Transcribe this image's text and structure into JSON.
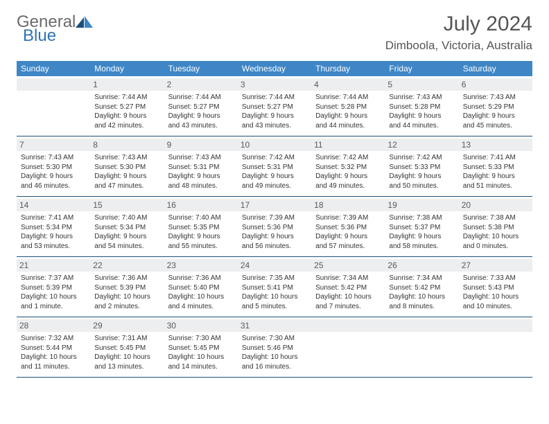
{
  "brand": {
    "part1": "General",
    "part2": "Blue"
  },
  "title": "July 2024",
  "location": "Dimboola, Victoria, Australia",
  "colors": {
    "header_bg": "#3f86c6",
    "band_bg": "#eceeef",
    "row_border": "#1b4f7a",
    "logo_gray": "#6b6b6b",
    "logo_blue": "#2f73b5"
  },
  "weekdays": [
    "Sunday",
    "Monday",
    "Tuesday",
    "Wednesday",
    "Thursday",
    "Friday",
    "Saturday"
  ],
  "weeks": [
    [
      {
        "n": "",
        "lines": []
      },
      {
        "n": "1",
        "lines": [
          "Sunrise: 7:44 AM",
          "Sunset: 5:27 PM",
          "Daylight: 9 hours",
          "and 42 minutes."
        ]
      },
      {
        "n": "2",
        "lines": [
          "Sunrise: 7:44 AM",
          "Sunset: 5:27 PM",
          "Daylight: 9 hours",
          "and 43 minutes."
        ]
      },
      {
        "n": "3",
        "lines": [
          "Sunrise: 7:44 AM",
          "Sunset: 5:27 PM",
          "Daylight: 9 hours",
          "and 43 minutes."
        ]
      },
      {
        "n": "4",
        "lines": [
          "Sunrise: 7:44 AM",
          "Sunset: 5:28 PM",
          "Daylight: 9 hours",
          "and 44 minutes."
        ]
      },
      {
        "n": "5",
        "lines": [
          "Sunrise: 7:43 AM",
          "Sunset: 5:28 PM",
          "Daylight: 9 hours",
          "and 44 minutes."
        ]
      },
      {
        "n": "6",
        "lines": [
          "Sunrise: 7:43 AM",
          "Sunset: 5:29 PM",
          "Daylight: 9 hours",
          "and 45 minutes."
        ]
      }
    ],
    [
      {
        "n": "7",
        "lines": [
          "Sunrise: 7:43 AM",
          "Sunset: 5:30 PM",
          "Daylight: 9 hours",
          "and 46 minutes."
        ]
      },
      {
        "n": "8",
        "lines": [
          "Sunrise: 7:43 AM",
          "Sunset: 5:30 PM",
          "Daylight: 9 hours",
          "and 47 minutes."
        ]
      },
      {
        "n": "9",
        "lines": [
          "Sunrise: 7:43 AM",
          "Sunset: 5:31 PM",
          "Daylight: 9 hours",
          "and 48 minutes."
        ]
      },
      {
        "n": "10",
        "lines": [
          "Sunrise: 7:42 AM",
          "Sunset: 5:31 PM",
          "Daylight: 9 hours",
          "and 49 minutes."
        ]
      },
      {
        "n": "11",
        "lines": [
          "Sunrise: 7:42 AM",
          "Sunset: 5:32 PM",
          "Daylight: 9 hours",
          "and 49 minutes."
        ]
      },
      {
        "n": "12",
        "lines": [
          "Sunrise: 7:42 AM",
          "Sunset: 5:33 PM",
          "Daylight: 9 hours",
          "and 50 minutes."
        ]
      },
      {
        "n": "13",
        "lines": [
          "Sunrise: 7:41 AM",
          "Sunset: 5:33 PM",
          "Daylight: 9 hours",
          "and 51 minutes."
        ]
      }
    ],
    [
      {
        "n": "14",
        "lines": [
          "Sunrise: 7:41 AM",
          "Sunset: 5:34 PM",
          "Daylight: 9 hours",
          "and 53 minutes."
        ]
      },
      {
        "n": "15",
        "lines": [
          "Sunrise: 7:40 AM",
          "Sunset: 5:34 PM",
          "Daylight: 9 hours",
          "and 54 minutes."
        ]
      },
      {
        "n": "16",
        "lines": [
          "Sunrise: 7:40 AM",
          "Sunset: 5:35 PM",
          "Daylight: 9 hours",
          "and 55 minutes."
        ]
      },
      {
        "n": "17",
        "lines": [
          "Sunrise: 7:39 AM",
          "Sunset: 5:36 PM",
          "Daylight: 9 hours",
          "and 56 minutes."
        ]
      },
      {
        "n": "18",
        "lines": [
          "Sunrise: 7:39 AM",
          "Sunset: 5:36 PM",
          "Daylight: 9 hours",
          "and 57 minutes."
        ]
      },
      {
        "n": "19",
        "lines": [
          "Sunrise: 7:38 AM",
          "Sunset: 5:37 PM",
          "Daylight: 9 hours",
          "and 58 minutes."
        ]
      },
      {
        "n": "20",
        "lines": [
          "Sunrise: 7:38 AM",
          "Sunset: 5:38 PM",
          "Daylight: 10 hours",
          "and 0 minutes."
        ]
      }
    ],
    [
      {
        "n": "21",
        "lines": [
          "Sunrise: 7:37 AM",
          "Sunset: 5:39 PM",
          "Daylight: 10 hours",
          "and 1 minute."
        ]
      },
      {
        "n": "22",
        "lines": [
          "Sunrise: 7:36 AM",
          "Sunset: 5:39 PM",
          "Daylight: 10 hours",
          "and 2 minutes."
        ]
      },
      {
        "n": "23",
        "lines": [
          "Sunrise: 7:36 AM",
          "Sunset: 5:40 PM",
          "Daylight: 10 hours",
          "and 4 minutes."
        ]
      },
      {
        "n": "24",
        "lines": [
          "Sunrise: 7:35 AM",
          "Sunset: 5:41 PM",
          "Daylight: 10 hours",
          "and 5 minutes."
        ]
      },
      {
        "n": "25",
        "lines": [
          "Sunrise: 7:34 AM",
          "Sunset: 5:42 PM",
          "Daylight: 10 hours",
          "and 7 minutes."
        ]
      },
      {
        "n": "26",
        "lines": [
          "Sunrise: 7:34 AM",
          "Sunset: 5:42 PM",
          "Daylight: 10 hours",
          "and 8 minutes."
        ]
      },
      {
        "n": "27",
        "lines": [
          "Sunrise: 7:33 AM",
          "Sunset: 5:43 PM",
          "Daylight: 10 hours",
          "and 10 minutes."
        ]
      }
    ],
    [
      {
        "n": "28",
        "lines": [
          "Sunrise: 7:32 AM",
          "Sunset: 5:44 PM",
          "Daylight: 10 hours",
          "and 11 minutes."
        ]
      },
      {
        "n": "29",
        "lines": [
          "Sunrise: 7:31 AM",
          "Sunset: 5:45 PM",
          "Daylight: 10 hours",
          "and 13 minutes."
        ]
      },
      {
        "n": "30",
        "lines": [
          "Sunrise: 7:30 AM",
          "Sunset: 5:45 PM",
          "Daylight: 10 hours",
          "and 14 minutes."
        ]
      },
      {
        "n": "31",
        "lines": [
          "Sunrise: 7:30 AM",
          "Sunset: 5:46 PM",
          "Daylight: 10 hours",
          "and 16 minutes."
        ]
      },
      {
        "n": "",
        "lines": []
      },
      {
        "n": "",
        "lines": []
      },
      {
        "n": "",
        "lines": []
      }
    ]
  ]
}
